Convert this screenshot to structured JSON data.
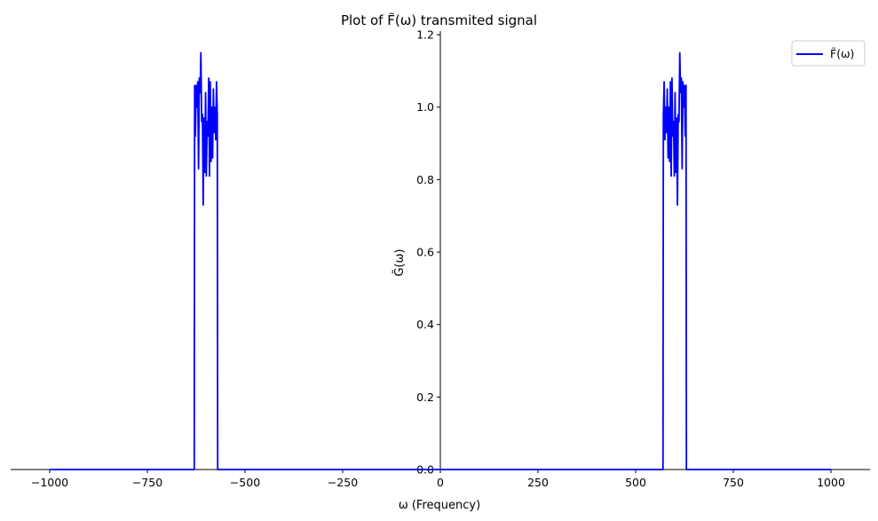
{
  "chart_data": {
    "type": "line",
    "title": "Plot of F̃(ω) transmited signal",
    "xlabel": "ω (Frequency)",
    "ylabel": "G̃(ω)",
    "xlim": [
      -1100,
      1100
    ],
    "ylim": [
      0,
      1.21
    ],
    "xticks": [
      -1000,
      -750,
      -500,
      -250,
      0,
      250,
      500,
      750,
      1000
    ],
    "xtick_labels": [
      "−1000",
      "−750",
      "−500",
      "−250",
      "0",
      "250",
      "500",
      "750",
      "1000"
    ],
    "yticks": [
      0.0,
      0.2,
      0.4,
      0.6,
      0.8,
      1.0,
      1.2
    ],
    "ytick_labels": [
      "0.0",
      "0.2",
      "0.4",
      "0.6",
      "0.8",
      "1.0",
      "1.2"
    ],
    "grid": false,
    "legend_position": "top-right",
    "colors": {
      "series": "#0000ff",
      "axis": "#000000"
    },
    "series": [
      {
        "name": "F̃(ω)",
        "x": [
          -1000,
          -630,
          -629,
          -627,
          -625,
          -623,
          -621,
          -619,
          -617,
          -615,
          -613,
          -611,
          -609,
          -607,
          -605,
          -603,
          -601,
          -599,
          -597,
          -595,
          -593,
          -591,
          -589,
          -587,
          -585,
          -583,
          -581,
          -579,
          -577,
          -575,
          -573,
          -571,
          -570,
          570,
          571,
          573,
          575,
          577,
          579,
          581,
          583,
          585,
          587,
          589,
          591,
          593,
          595,
          597,
          599,
          601,
          603,
          605,
          607,
          609,
          611,
          613,
          615,
          617,
          619,
          621,
          623,
          625,
          627,
          629,
          630,
          1000
        ],
        "y": [
          0,
          0,
          1.06,
          0.92,
          1.06,
          1.0,
          1.07,
          0.83,
          1.08,
          1.04,
          1.15,
          0.96,
          0.98,
          0.73,
          0.97,
          0.82,
          1.04,
          0.81,
          0.96,
          0.92,
          1.08,
          0.81,
          1.07,
          0.85,
          1.0,
          0.86,
          1.05,
          0.93,
          1.0,
          0.91,
          1.07,
          0.98,
          0,
          0,
          0.98,
          1.07,
          0.91,
          1.0,
          0.93,
          1.05,
          0.86,
          1.0,
          0.85,
          1.07,
          0.81,
          1.08,
          0.92,
          0.96,
          0.81,
          1.04,
          0.82,
          0.97,
          0.73,
          0.98,
          0.96,
          1.15,
          1.04,
          1.08,
          0.83,
          1.07,
          1.0,
          1.06,
          0.92,
          1.06,
          0,
          0
        ]
      }
    ]
  }
}
